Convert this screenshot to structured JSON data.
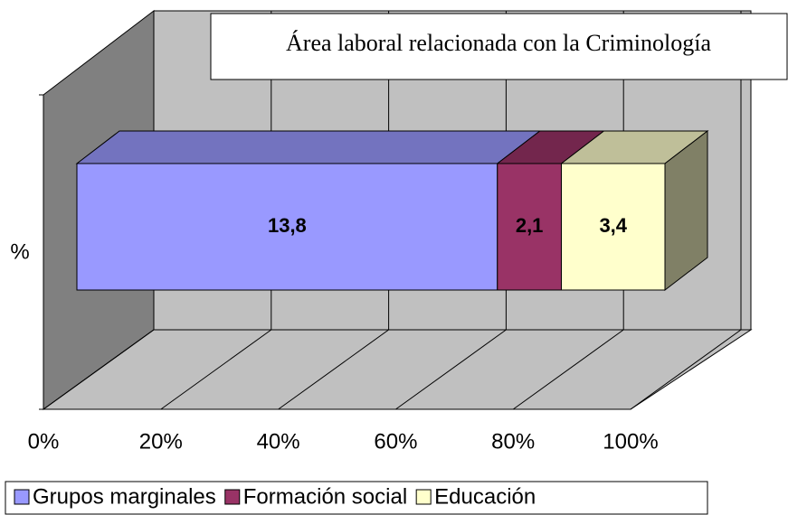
{
  "chart_data": {
    "type": "bar",
    "orientation": "horizontal",
    "stacking": "percent",
    "three_d": true,
    "title": "Área laboral relacionada con la Criminología",
    "categories": [
      "%"
    ],
    "series": [
      {
        "name": "Grupos marginales",
        "color": "#9999ff",
        "values": [
          13.8
        ],
        "value_labels": [
          "13,8"
        ]
      },
      {
        "name": "Formación social",
        "color": "#993366",
        "values": [
          2.1
        ],
        "value_labels": [
          "2,1"
        ]
      },
      {
        "name": "Educación",
        "color": "#ffffcc",
        "values": [
          3.4
        ],
        "value_labels": [
          "3,4"
        ]
      }
    ],
    "xlim": [
      0,
      100
    ],
    "xticks": [
      {
        "value": 0,
        "label": "0%"
      },
      {
        "value": 20,
        "label": "20%"
      },
      {
        "value": 40,
        "label": "40%"
      },
      {
        "value": 60,
        "label": "60%"
      },
      {
        "value": 80,
        "label": "80%"
      },
      {
        "value": 100,
        "label": "100%"
      }
    ],
    "grid": true,
    "legend": "bottom"
  }
}
